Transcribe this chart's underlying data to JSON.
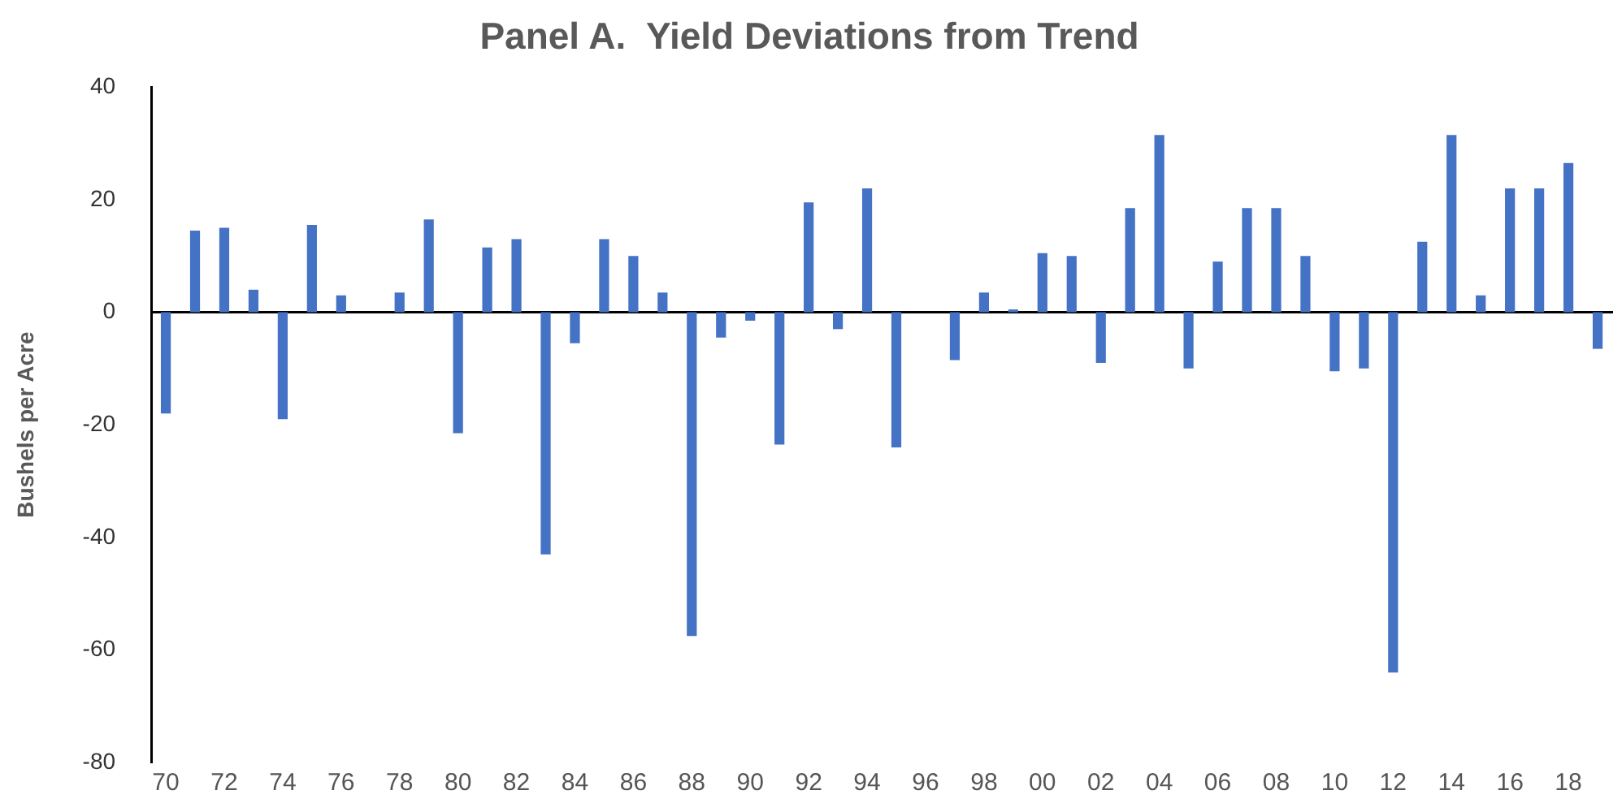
{
  "chart_data": {
    "type": "bar",
    "title": "Panel A.  Yield Deviations from Trend",
    "ylabel": "Bushels per Acre",
    "categories": [
      "70",
      null,
      "72",
      null,
      "74",
      null,
      "76",
      null,
      "78",
      null,
      "80",
      null,
      "82",
      null,
      "84",
      null,
      "86",
      null,
      "88",
      null,
      "90",
      null,
      "92",
      null,
      "94",
      null,
      "96",
      null,
      "98",
      null,
      "00",
      null,
      "02",
      null,
      "04",
      null,
      "06",
      null,
      "08",
      null,
      "10",
      null,
      "12",
      null,
      "14",
      null,
      "16",
      null,
      "18",
      null
    ],
    "values": [
      -18,
      14.5,
      15,
      4,
      -19,
      15.5,
      3,
      0,
      3.5,
      16.5,
      -21.5,
      11.5,
      13,
      -43,
      -5.5,
      13,
      10,
      3.5,
      -57.5,
      -4.5,
      -1.5,
      -23.5,
      19.5,
      -3,
      22,
      -24,
      0,
      -8.5,
      3.5,
      0.5,
      10.5,
      10,
      -9,
      18.5,
      31.5,
      -10,
      9,
      18.5,
      18.5,
      10,
      -10.5,
      -10,
      -64,
      12.5,
      31.5,
      3,
      22,
      22,
      26.5,
      -6.5
    ],
    "color": "#4472c4",
    "ylim": [
      -80,
      40
    ],
    "yticks": [
      -80,
      -60,
      -40,
      -20,
      0,
      20,
      40
    ],
    "legend": false
  }
}
